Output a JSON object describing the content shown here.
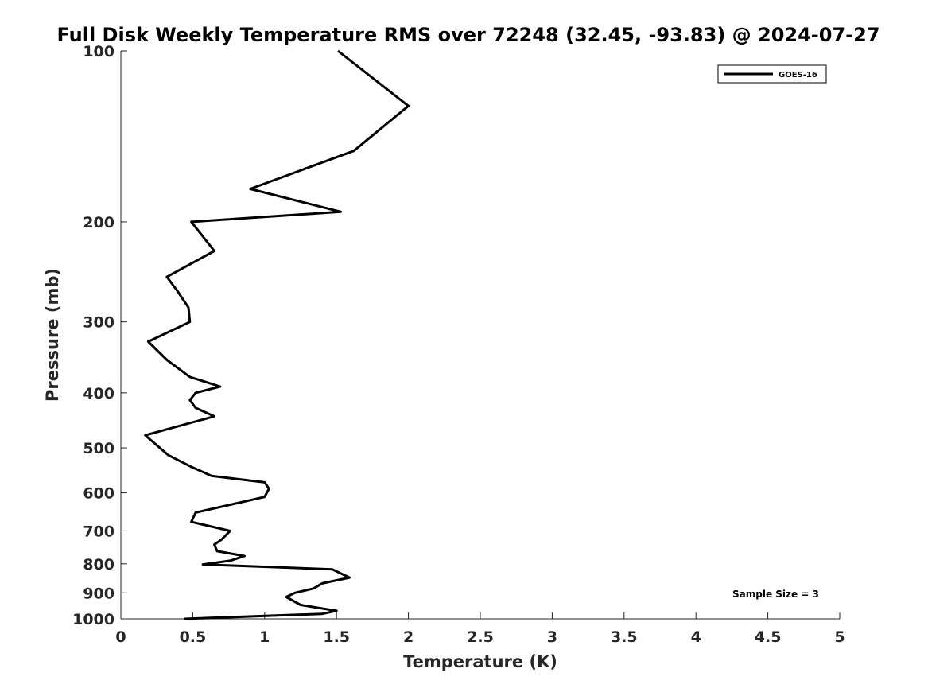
{
  "chart_data": {
    "type": "line",
    "title": "Full Disk Weekly Temperature RMS over 72248 (32.45, -93.83) @ 2024-07-27",
    "xlabel": "Temperature (K)",
    "ylabel": "Pressure (mb)",
    "xlim": [
      0,
      5
    ],
    "ylim": [
      100,
      1000
    ],
    "yscale": "log",
    "y_reversed": true,
    "grid": false,
    "legend_position": "top-right",
    "x_ticks": [
      "0",
      "0.5",
      "1",
      "1.5",
      "2",
      "2.5",
      "3",
      "3.5",
      "4",
      "4.5",
      "5"
    ],
    "x_tick_values": [
      0,
      0.5,
      1,
      1.5,
      2,
      2.5,
      3,
      3.5,
      4,
      4.5,
      5
    ],
    "y_ticks": [
      "100",
      "200",
      "300",
      "400",
      "500",
      "600",
      "700",
      "800",
      "900",
      "1000"
    ],
    "y_tick_values": [
      100,
      200,
      300,
      400,
      500,
      600,
      700,
      800,
      900,
      1000
    ],
    "series": [
      {
        "name": "GOES-16",
        "color": "#000000",
        "points": [
          [
            1.51,
            100
          ],
          [
            2.0,
            125
          ],
          [
            1.62,
            150
          ],
          [
            0.9,
            175
          ],
          [
            1.53,
            192
          ],
          [
            0.49,
            200
          ],
          [
            0.65,
            225
          ],
          [
            0.32,
            250
          ],
          [
            0.39,
            264
          ],
          [
            0.47,
            283
          ],
          [
            0.48,
            300
          ],
          [
            0.19,
            325
          ],
          [
            0.32,
            350
          ],
          [
            0.48,
            375
          ],
          [
            0.69,
            390
          ],
          [
            0.52,
            400
          ],
          [
            0.48,
            412
          ],
          [
            0.52,
            425
          ],
          [
            0.65,
            440
          ],
          [
            0.17,
            475
          ],
          [
            0.33,
            515
          ],
          [
            0.49,
            540
          ],
          [
            0.63,
            560
          ],
          [
            1.0,
            575
          ],
          [
            1.03,
            590
          ],
          [
            1.0,
            610
          ],
          [
            0.52,
            650
          ],
          [
            0.49,
            675
          ],
          [
            0.76,
            700
          ],
          [
            0.7,
            725
          ],
          [
            0.65,
            740
          ],
          [
            0.67,
            760
          ],
          [
            0.86,
            775
          ],
          [
            0.76,
            790
          ],
          [
            0.57,
            802
          ],
          [
            1.47,
            818
          ],
          [
            1.59,
            846
          ],
          [
            1.4,
            866
          ],
          [
            1.34,
            884
          ],
          [
            1.21,
            900
          ],
          [
            1.15,
            915
          ],
          [
            1.25,
            945
          ],
          [
            1.5,
            968
          ],
          [
            1.4,
            980
          ],
          [
            0.44,
            1000
          ]
        ]
      }
    ],
    "annotation": "Sample Size = 3"
  }
}
